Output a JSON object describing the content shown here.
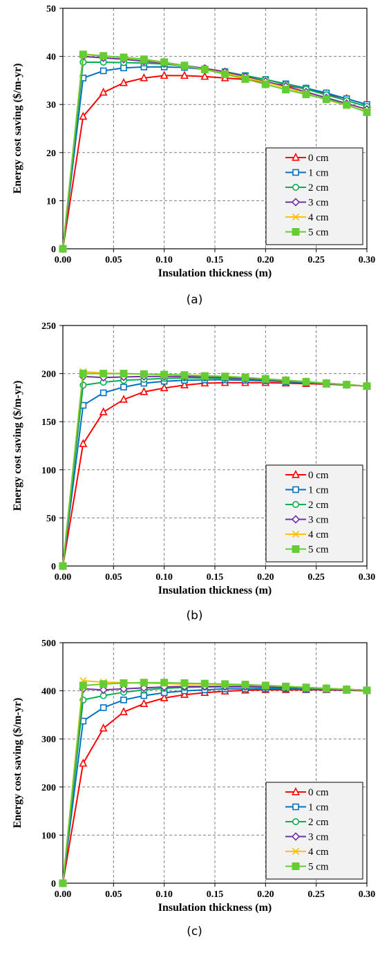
{
  "chart_data": [
    {
      "type": "line",
      "panel_label": "(a)",
      "xlabel": "Insulation thickness (m)",
      "ylabel": "Energy cost saving ($/m-yr)",
      "xlim": [
        0,
        0.3
      ],
      "ylim": [
        0,
        50
      ],
      "x_ticks": [
        "0.00",
        "0.05",
        "0.10",
        "0.15",
        "0.20",
        "0.25",
        "0.30"
      ],
      "y_ticks": [
        "0",
        "10",
        "20",
        "30",
        "40",
        "50"
      ],
      "grid": true,
      "legend_position": "lower-right",
      "x": [
        0,
        0.02,
        0.04,
        0.06,
        0.08,
        0.1,
        0.12,
        0.14,
        0.16,
        0.18,
        0.2,
        0.22,
        0.24,
        0.26,
        0.28,
        0.3
      ],
      "series": [
        {
          "name": "0 cm",
          "color": "#ff0000",
          "marker": "triangle",
          "values": [
            0,
            27.5,
            32.5,
            34.5,
            35.5,
            36.0,
            36.0,
            35.8,
            35.5,
            35.2,
            34.5,
            34.0,
            33.2,
            32.2,
            31.2,
            30.0
          ]
        },
        {
          "name": "1 cm",
          "color": "#0070c0",
          "marker": "square",
          "values": [
            0,
            35.5,
            37.0,
            37.6,
            37.8,
            37.8,
            37.7,
            37.3,
            36.8,
            36.0,
            35.2,
            34.3,
            33.4,
            32.4,
            31.2,
            30.0
          ]
        },
        {
          "name": "2 cm",
          "color": "#00b050",
          "marker": "circle",
          "values": [
            0,
            38.8,
            38.8,
            38.7,
            38.6,
            38.4,
            38.0,
            37.5,
            36.8,
            36.0,
            35.2,
            34.2,
            33.2,
            32.0,
            30.8,
            29.6
          ]
        },
        {
          "name": "3 cm",
          "color": "#7030a0",
          "marker": "diamond",
          "values": [
            0,
            40.0,
            39.7,
            39.4,
            39.0,
            38.6,
            38.1,
            37.5,
            36.8,
            35.8,
            34.8,
            33.8,
            32.6,
            31.4,
            30.2,
            29.0
          ]
        },
        {
          "name": "4 cm",
          "color": "#ffc000",
          "marker": "x",
          "values": [
            0,
            40.5,
            40.1,
            39.7,
            39.3,
            38.7,
            38.0,
            37.3,
            36.5,
            35.6,
            34.6,
            33.5,
            32.3,
            31.0,
            29.8,
            28.6
          ]
        },
        {
          "name": "5 cm",
          "color": "#66cc33",
          "marker": "filled-square",
          "values": [
            0,
            40.4,
            40.1,
            39.8,
            39.4,
            38.8,
            38.1,
            37.3,
            36.3,
            35.3,
            34.2,
            33.1,
            32.1,
            31.1,
            29.9,
            28.4
          ]
        }
      ]
    },
    {
      "type": "line",
      "panel_label": "(b)",
      "xlabel": "Insulation thickness (m)",
      "ylabel": "Energy cost saving ($/m-yr)",
      "xlim": [
        0,
        0.3
      ],
      "ylim": [
        0,
        250
      ],
      "x_ticks": [
        "0.00",
        "0.05",
        "0.10",
        "0.15",
        "0.20",
        "0.25",
        "0.30"
      ],
      "y_ticks": [
        "0",
        "50",
        "100",
        "150",
        "200",
        "250"
      ],
      "grid": true,
      "legend_position": "lower-right",
      "x": [
        0,
        0.02,
        0.04,
        0.06,
        0.08,
        0.1,
        0.12,
        0.14,
        0.16,
        0.18,
        0.2,
        0.22,
        0.24,
        0.26,
        0.28,
        0.3
      ],
      "series": [
        {
          "name": "0 cm",
          "color": "#ff0000",
          "marker": "triangle",
          "values": [
            0,
            127,
            160,
            173,
            181,
            185,
            188,
            190,
            190.5,
            190.5,
            190.5,
            190,
            189.5,
            189,
            188,
            187
          ]
        },
        {
          "name": "1 cm",
          "color": "#0070c0",
          "marker": "square",
          "values": [
            0,
            167,
            180,
            186,
            190,
            192,
            193,
            193.5,
            193.5,
            193,
            192.5,
            191.5,
            190.5,
            189.5,
            188.5,
            187
          ]
        },
        {
          "name": "2 cm",
          "color": "#00b050",
          "marker": "circle",
          "values": [
            0,
            188,
            191,
            193,
            194,
            195,
            195.5,
            195.5,
            195,
            194.5,
            193.5,
            192.5,
            191,
            190,
            188.5,
            187
          ]
        },
        {
          "name": "3 cm",
          "color": "#7030a0",
          "marker": "diamond",
          "values": [
            0,
            197,
            196,
            196.5,
            197,
            197,
            197,
            196.5,
            196,
            195,
            194,
            193,
            191.5,
            190,
            188.5,
            187
          ]
        },
        {
          "name": "4 cm",
          "color": "#ffc000",
          "marker": "x",
          "values": [
            0,
            202,
            200.5,
            200,
            199.5,
            199,
            198.5,
            198,
            197,
            196,
            194.5,
            193,
            191.5,
            190,
            188.5,
            187
          ]
        },
        {
          "name": "5 cm",
          "color": "#66cc33",
          "marker": "filled-square",
          "values": [
            0,
            200,
            200,
            200,
            199.5,
            199,
            198.5,
            197.5,
            197,
            196,
            194.5,
            193,
            191.5,
            190,
            188.5,
            187
          ]
        }
      ]
    },
    {
      "type": "line",
      "panel_label": "(c)",
      "xlabel": "Insulation thickness (m)",
      "ylabel": "Energy cost saving ($/m-yr)",
      "xlim": [
        0,
        0.3
      ],
      "ylim": [
        0,
        500
      ],
      "x_ticks": [
        "0.00",
        "0.05",
        "0.10",
        "0.15",
        "0.20",
        "0.25",
        "0.30"
      ],
      "y_ticks": [
        "0",
        "100",
        "200",
        "300",
        "400",
        "500"
      ],
      "grid": true,
      "legend_position": "lower-right",
      "x": [
        0,
        0.02,
        0.04,
        0.06,
        0.08,
        0.1,
        0.12,
        0.14,
        0.16,
        0.18,
        0.2,
        0.22,
        0.24,
        0.26,
        0.28,
        0.3
      ],
      "series": [
        {
          "name": "0 cm",
          "color": "#ff0000",
          "marker": "triangle",
          "values": [
            0,
            249,
            322,
            356,
            373,
            385,
            392,
            396,
            399,
            401,
            402,
            402,
            402,
            402,
            401,
            400
          ]
        },
        {
          "name": "1 cm",
          "color": "#0070c0",
          "marker": "square",
          "values": [
            0,
            337,
            365,
            381,
            390,
            396,
            400,
            402,
            404,
            404,
            404,
            404,
            403,
            403,
            402,
            401
          ]
        },
        {
          "name": "2 cm",
          "color": "#00b050",
          "marker": "circle",
          "values": [
            0,
            381,
            390,
            397,
            402,
            405,
            407,
            408,
            408,
            408,
            407,
            406,
            405,
            404,
            403,
            401
          ]
        },
        {
          "name": "3 cm",
          "color": "#7030a0",
          "marker": "diamond",
          "values": [
            0,
            404,
            402,
            404,
            406,
            408,
            409,
            409,
            409,
            409,
            408,
            407,
            406,
            405,
            403,
            401
          ]
        },
        {
          "name": "4 cm",
          "color": "#ffc000",
          "marker": "x",
          "values": [
            0,
            421,
            418,
            417,
            416,
            415,
            414,
            414,
            413,
            412,
            411,
            409,
            407,
            405,
            403,
            401
          ]
        },
        {
          "name": "5 cm",
          "color": "#66cc33",
          "marker": "filled-square",
          "values": [
            0,
            411,
            414,
            416,
            417,
            417,
            416,
            415,
            414,
            413,
            411,
            409,
            407,
            405,
            403,
            401
          ]
        }
      ]
    }
  ]
}
